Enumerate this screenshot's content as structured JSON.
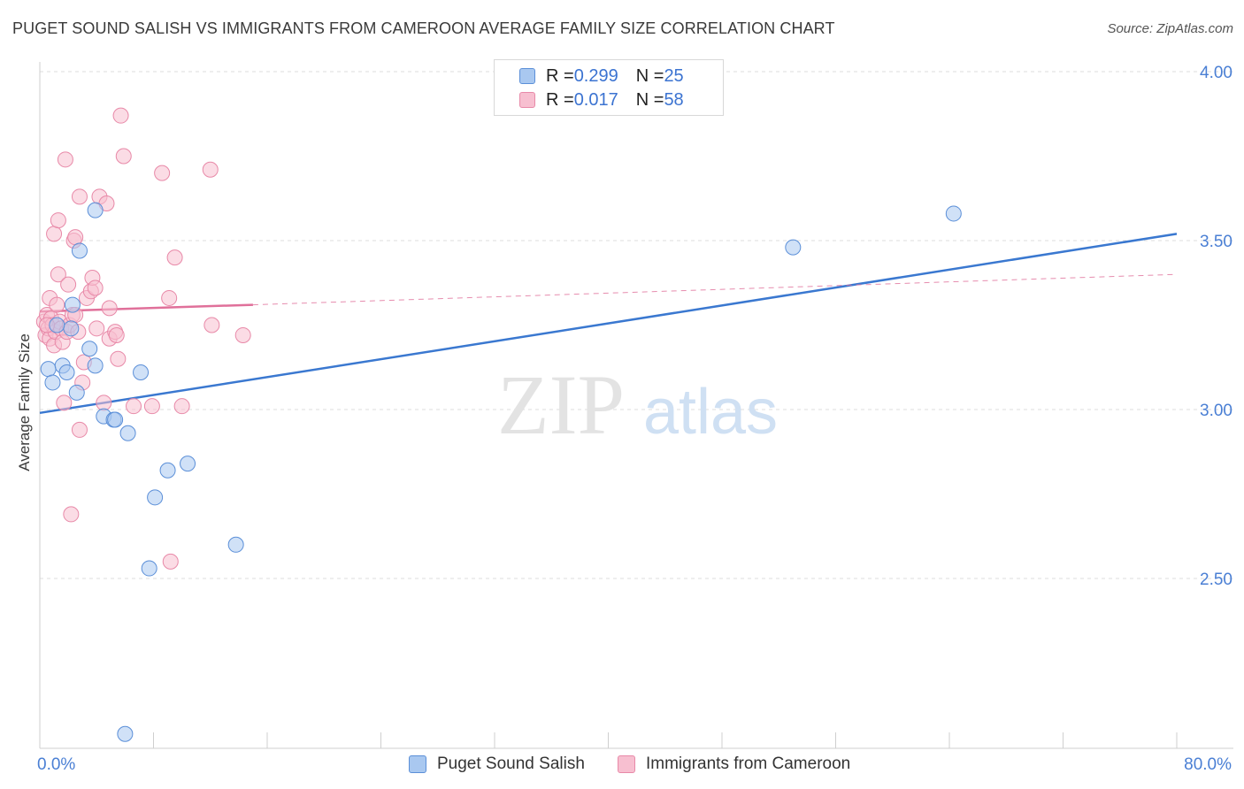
{
  "header": {
    "title": "PUGET SOUND SALISH VS IMMIGRANTS FROM CAMEROON AVERAGE FAMILY SIZE CORRELATION CHART",
    "source": "Source: ZipAtlas.com"
  },
  "legend": {
    "rows": [
      {
        "r_label": "R = ",
        "r_value": "0.299",
        "n_label": "N = ",
        "n_value": "25"
      },
      {
        "r_label": "R = ",
        "r_value": "0.017",
        "n_label": "N = ",
        "n_value": "58"
      }
    ]
  },
  "bottom_legend": {
    "series1": "Puget Sound Salish",
    "series2": "Immigrants from Cameroon"
  },
  "axis": {
    "x_min_label": "0.0%",
    "x_max_label": "80.0%",
    "y_label": "Average Family Size",
    "y_ticks": [
      "4.00",
      "3.50",
      "3.00",
      "2.50"
    ]
  },
  "watermark": {
    "zip": "ZIP",
    "atlas": "atlas"
  },
  "colors": {
    "blue_fill": "#a9c8f0",
    "blue_stroke": "#5b8fd8",
    "blue_line": "#3a78d0",
    "pink_fill": "#f7bfd0",
    "pink_stroke": "#e889a8",
    "pink_line": "#e0709a",
    "tick_text": "#4a7fd4"
  },
  "chart_data": {
    "type": "scatter",
    "title": "PUGET SOUND SALISH VS IMMIGRANTS FROM CAMEROON AVERAGE FAMILY SIZE CORRELATION CHART",
    "xlabel": "",
    "ylabel": "Average Family Size",
    "xlim": [
      0,
      80
    ],
    "ylim": [
      2.05,
      4.08
    ],
    "y_ticks": [
      2.5,
      3.0,
      3.5,
      4.0
    ],
    "grid": "horizontal dashed",
    "legend_position": "top-center",
    "series": [
      {
        "name": "Puget Sound Salish",
        "color": "#a9c8f0",
        "r": 0.299,
        "n": 25,
        "trend": {
          "x": [
            0,
            80
          ],
          "y": [
            2.99,
            3.52
          ]
        },
        "points": [
          {
            "x": 0.6,
            "y": 3.12
          },
          {
            "x": 0.9,
            "y": 3.08
          },
          {
            "x": 1.6,
            "y": 3.13
          },
          {
            "x": 1.9,
            "y": 3.11
          },
          {
            "x": 2.2,
            "y": 3.24
          },
          {
            "x": 2.3,
            "y": 3.31
          },
          {
            "x": 2.6,
            "y": 3.05
          },
          {
            "x": 2.8,
            "y": 3.47
          },
          {
            "x": 3.5,
            "y": 3.18
          },
          {
            "x": 3.9,
            "y": 3.13
          },
          {
            "x": 3.9,
            "y": 3.59
          },
          {
            "x": 4.5,
            "y": 2.98
          },
          {
            "x": 5.2,
            "y": 2.97
          },
          {
            "x": 5.3,
            "y": 2.97
          },
          {
            "x": 6.2,
            "y": 2.93
          },
          {
            "x": 7.1,
            "y": 3.11
          },
          {
            "x": 7.7,
            "y": 2.53
          },
          {
            "x": 8.1,
            "y": 2.74
          },
          {
            "x": 9.0,
            "y": 2.82
          },
          {
            "x": 10.4,
            "y": 2.84
          },
          {
            "x": 13.8,
            "y": 2.6
          },
          {
            "x": 6.0,
            "y": 2.04
          },
          {
            "x": 53.0,
            "y": 3.48
          },
          {
            "x": 64.3,
            "y": 3.58
          },
          {
            "x": 1.2,
            "y": 3.25
          }
        ]
      },
      {
        "name": "Immigrants from Cameroon",
        "color": "#f7bfd0",
        "r": 0.017,
        "n": 58,
        "trend": {
          "x": [
            0,
            15
          ],
          "y": [
            3.29,
            3.31
          ],
          "extended": {
            "x": [
              15,
              80
            ],
            "y": [
              3.31,
              3.4
            ]
          }
        },
        "points": [
          {
            "x": 0.3,
            "y": 3.26
          },
          {
            "x": 0.4,
            "y": 3.22
          },
          {
            "x": 0.5,
            "y": 3.28
          },
          {
            "x": 0.6,
            "y": 3.24
          },
          {
            "x": 0.7,
            "y": 3.33
          },
          {
            "x": 0.7,
            "y": 3.21
          },
          {
            "x": 0.8,
            "y": 3.27
          },
          {
            "x": 0.9,
            "y": 3.25
          },
          {
            "x": 1.0,
            "y": 3.19
          },
          {
            "x": 1.0,
            "y": 3.52
          },
          {
            "x": 1.1,
            "y": 3.23
          },
          {
            "x": 1.2,
            "y": 3.31
          },
          {
            "x": 1.3,
            "y": 3.4
          },
          {
            "x": 1.3,
            "y": 3.56
          },
          {
            "x": 1.4,
            "y": 3.26
          },
          {
            "x": 1.5,
            "y": 3.24
          },
          {
            "x": 1.6,
            "y": 3.2
          },
          {
            "x": 1.7,
            "y": 3.02
          },
          {
            "x": 1.8,
            "y": 3.74
          },
          {
            "x": 1.9,
            "y": 3.23
          },
          {
            "x": 2.0,
            "y": 3.37
          },
          {
            "x": 2.1,
            "y": 3.25
          },
          {
            "x": 2.2,
            "y": 2.69
          },
          {
            "x": 2.3,
            "y": 3.28
          },
          {
            "x": 2.4,
            "y": 3.5
          },
          {
            "x": 2.5,
            "y": 3.51
          },
          {
            "x": 2.5,
            "y": 3.28
          },
          {
            "x": 2.7,
            "y": 3.23
          },
          {
            "x": 2.8,
            "y": 2.94
          },
          {
            "x": 2.8,
            "y": 3.63
          },
          {
            "x": 3.0,
            "y": 3.08
          },
          {
            "x": 3.1,
            "y": 3.14
          },
          {
            "x": 3.3,
            "y": 3.33
          },
          {
            "x": 3.6,
            "y": 3.35
          },
          {
            "x": 3.7,
            "y": 3.39
          },
          {
            "x": 3.9,
            "y": 3.36
          },
          {
            "x": 4.0,
            "y": 3.24
          },
          {
            "x": 4.2,
            "y": 3.63
          },
          {
            "x": 4.5,
            "y": 3.02
          },
          {
            "x": 4.7,
            "y": 3.61
          },
          {
            "x": 4.9,
            "y": 3.21
          },
          {
            "x": 4.9,
            "y": 3.3
          },
          {
            "x": 5.3,
            "y": 3.23
          },
          {
            "x": 5.4,
            "y": 3.22
          },
          {
            "x": 5.5,
            "y": 3.15
          },
          {
            "x": 5.7,
            "y": 3.87
          },
          {
            "x": 5.9,
            "y": 3.75
          },
          {
            "x": 6.6,
            "y": 3.01
          },
          {
            "x": 7.9,
            "y": 3.01
          },
          {
            "x": 8.6,
            "y": 3.7
          },
          {
            "x": 9.1,
            "y": 3.33
          },
          {
            "x": 9.2,
            "y": 2.55
          },
          {
            "x": 9.5,
            "y": 3.45
          },
          {
            "x": 10.0,
            "y": 3.01
          },
          {
            "x": 12.0,
            "y": 3.71
          },
          {
            "x": 12.1,
            "y": 3.25
          },
          {
            "x": 14.3,
            "y": 3.22
          },
          {
            "x": 0.5,
            "y": 3.25
          }
        ]
      }
    ]
  }
}
